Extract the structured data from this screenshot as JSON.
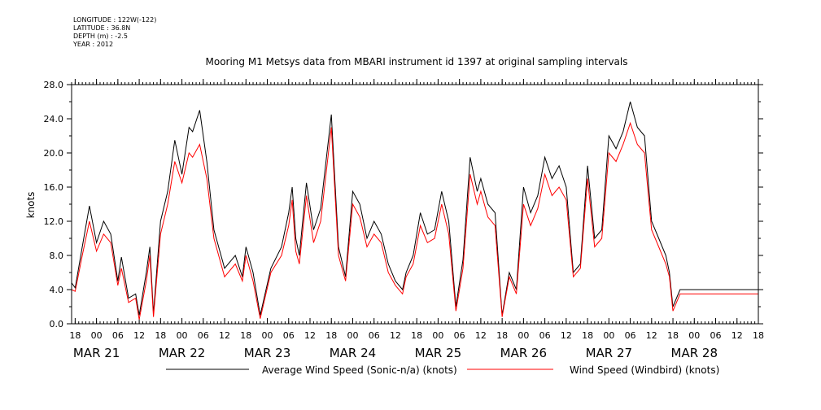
{
  "header": {
    "longitude": "LONGITUDE : 122W(-122)",
    "latitude": "LATITUDE : 36.8N",
    "depth": "DEPTH (m) : -2.5",
    "year": "YEAR : 2012"
  },
  "chart_data": {
    "type": "line",
    "title": "Mooring M1 Metsys data from MBARI instrument id 1397 at original sampling intervals",
    "ylabel": "knots",
    "xlabel": "",
    "ylim": [
      0,
      28
    ],
    "yticks": [
      0,
      4,
      8,
      12,
      16,
      20,
      24,
      28
    ],
    "ytick_labels": [
      "0.0",
      "4.0",
      "8.0",
      "12.0",
      "16.0",
      "20.0",
      "24.0",
      "28.0"
    ],
    "xlim": [
      "2012-03-20T17:00",
      "2012-03-28T18:00"
    ],
    "xtick_hour_labels": [
      {
        "t": "2012-03-20T18:00",
        "label": "18"
      },
      {
        "t": "2012-03-21T00:00",
        "label": "00"
      },
      {
        "t": "2012-03-21T06:00",
        "label": "06"
      },
      {
        "t": "2012-03-21T12:00",
        "label": "12"
      },
      {
        "t": "2012-03-21T18:00",
        "label": "18"
      },
      {
        "t": "2012-03-22T00:00",
        "label": "00"
      },
      {
        "t": "2012-03-22T06:00",
        "label": "06"
      },
      {
        "t": "2012-03-22T12:00",
        "label": "12"
      },
      {
        "t": "2012-03-22T18:00",
        "label": "18"
      },
      {
        "t": "2012-03-23T00:00",
        "label": "00"
      },
      {
        "t": "2012-03-23T06:00",
        "label": "06"
      },
      {
        "t": "2012-03-23T12:00",
        "label": "12"
      },
      {
        "t": "2012-03-23T18:00",
        "label": "18"
      },
      {
        "t": "2012-03-24T00:00",
        "label": "00"
      },
      {
        "t": "2012-03-24T06:00",
        "label": "06"
      },
      {
        "t": "2012-03-24T12:00",
        "label": "12"
      },
      {
        "t": "2012-03-24T18:00",
        "label": "18"
      },
      {
        "t": "2012-03-25T00:00",
        "label": "00"
      },
      {
        "t": "2012-03-25T06:00",
        "label": "06"
      },
      {
        "t": "2012-03-25T12:00",
        "label": "12"
      },
      {
        "t": "2012-03-25T18:00",
        "label": "18"
      },
      {
        "t": "2012-03-26T00:00",
        "label": "00"
      },
      {
        "t": "2012-03-26T06:00",
        "label": "06"
      },
      {
        "t": "2012-03-26T12:00",
        "label": "12"
      },
      {
        "t": "2012-03-26T18:00",
        "label": "18"
      },
      {
        "t": "2012-03-27T00:00",
        "label": "00"
      },
      {
        "t": "2012-03-27T06:00",
        "label": "06"
      },
      {
        "t": "2012-03-27T12:00",
        "label": "12"
      },
      {
        "t": "2012-03-27T18:00",
        "label": "18"
      },
      {
        "t": "2012-03-28T00:00",
        "label": "00"
      },
      {
        "t": "2012-03-28T06:00",
        "label": "06"
      },
      {
        "t": "2012-03-28T12:00",
        "label": "12"
      },
      {
        "t": "2012-03-28T18:00",
        "label": "18"
      }
    ],
    "xtick_day_labels": [
      {
        "t": "2012-03-21T00:00",
        "label": "MAR 21"
      },
      {
        "t": "2012-03-22T00:00",
        "label": "MAR 22"
      },
      {
        "t": "2012-03-23T00:00",
        "label": "MAR 23"
      },
      {
        "t": "2012-03-24T00:00",
        "label": "MAR 24"
      },
      {
        "t": "2012-03-25T00:00",
        "label": "MAR 25"
      },
      {
        "t": "2012-03-26T00:00",
        "label": "MAR 26"
      },
      {
        "t": "2012-03-27T00:00",
        "label": "MAR 27"
      },
      {
        "t": "2012-03-28T00:00",
        "label": "MAR 28"
      }
    ],
    "legend_placement": "bottom",
    "series": [
      {
        "name": "Average Wind Speed (Sonic-n/a) (knots)",
        "color": "#000000",
        "x": [
          "2012-03-20T17:00",
          "2012-03-20T18:00",
          "2012-03-20T20:00",
          "2012-03-20T22:00",
          "2012-03-21T00:00",
          "2012-03-21T02:00",
          "2012-03-21T04:00",
          "2012-03-21T06:00",
          "2012-03-21T07:00",
          "2012-03-21T09:00",
          "2012-03-21T11:00",
          "2012-03-21T12:00",
          "2012-03-21T14:00",
          "2012-03-21T15:00",
          "2012-03-21T16:00",
          "2012-03-21T18:00",
          "2012-03-21T20:00",
          "2012-03-21T22:00",
          "2012-03-22T00:00",
          "2012-03-22T02:00",
          "2012-03-22T03:00",
          "2012-03-22T05:00",
          "2012-03-22T07:00",
          "2012-03-22T09:00",
          "2012-03-22T12:00",
          "2012-03-22T15:00",
          "2012-03-22T17:00",
          "2012-03-22T18:00",
          "2012-03-22T20:00",
          "2012-03-22T22:00",
          "2012-03-23T01:00",
          "2012-03-23T04:00",
          "2012-03-23T06:00",
          "2012-03-23T07:00",
          "2012-03-23T08:00",
          "2012-03-23T09:00",
          "2012-03-23T11:00",
          "2012-03-23T13:00",
          "2012-03-23T15:00",
          "2012-03-23T18:00",
          "2012-03-23T20:00",
          "2012-03-23T22:00",
          "2012-03-24T00:00",
          "2012-03-24T02:00",
          "2012-03-24T04:00",
          "2012-03-24T06:00",
          "2012-03-24T08:00",
          "2012-03-24T10:00",
          "2012-03-24T12:00",
          "2012-03-24T14:00",
          "2012-03-24T15:00",
          "2012-03-24T17:00",
          "2012-03-24T19:00",
          "2012-03-24T21:00",
          "2012-03-24T23:00",
          "2012-03-25T01:00",
          "2012-03-25T03:00",
          "2012-03-25T05:00",
          "2012-03-25T07:00",
          "2012-03-25T09:00",
          "2012-03-25T11:00",
          "2012-03-25T12:00",
          "2012-03-25T14:00",
          "2012-03-25T16:00",
          "2012-03-25T18:00",
          "2012-03-25T20:00",
          "2012-03-25T22:00",
          "2012-03-26T00:00",
          "2012-03-26T02:00",
          "2012-03-26T04:00",
          "2012-03-26T06:00",
          "2012-03-26T08:00",
          "2012-03-26T10:00",
          "2012-03-26T12:00",
          "2012-03-26T14:00",
          "2012-03-26T16:00",
          "2012-03-26T18:00",
          "2012-03-26T20:00",
          "2012-03-26T22:00",
          "2012-03-27T00:00",
          "2012-03-27T02:00",
          "2012-03-27T04:00",
          "2012-03-27T06:00",
          "2012-03-27T08:00",
          "2012-03-27T10:00",
          "2012-03-27T11:00",
          "2012-03-27T12:00",
          "2012-03-27T14:00",
          "2012-03-27T16:00",
          "2012-03-27T17:00",
          "2012-03-27T18:00",
          "2012-03-27T20:00",
          "2012-03-27T22:00",
          "2012-03-28T00:00",
          "2012-03-28T02:00",
          "2012-03-28T04:00",
          "2012-03-28T06:00",
          "2012-03-28T08:00",
          "2012-03-28T10:00",
          "2012-03-28T12:00",
          "2012-03-28T14:00",
          "2012-03-28T16:00",
          "2012-03-28T17:00",
          "2012-03-28T18:00"
        ],
        "y": [
          4.8,
          4.2,
          9.0,
          13.8,
          9.5,
          12.0,
          10.5,
          5.0,
          7.8,
          3.0,
          3.5,
          1.0,
          6.0,
          9.0,
          1.2,
          12.0,
          15.5,
          21.5,
          17.5,
          23.0,
          22.5,
          25.0,
          19.0,
          11.0,
          6.5,
          8.0,
          5.5,
          9.0,
          6.0,
          1.0,
          6.5,
          9.0,
          13.0,
          16.0,
          10.0,
          8.0,
          16.5,
          11.0,
          13.5,
          24.5,
          9.0,
          5.5,
          15.5,
          14.0,
          10.0,
          12.0,
          10.5,
          7.0,
          5.0,
          4.0,
          6.0,
          8.0,
          13.0,
          10.5,
          11.0,
          15.5,
          12.0,
          2.0,
          7.5,
          19.5,
          15.5,
          17.0,
          14.0,
          13.0,
          1.0,
          6.0,
          4.0,
          16.0,
          13.0,
          15.0,
          19.5,
          17.0,
          18.5,
          16.0,
          6.0,
          7.0,
          18.5,
          10.0,
          11.0,
          22.0,
          20.5,
          22.5,
          26.0,
          23.0,
          22.0,
          17.0,
          12.0,
          10.0,
          8.0,
          6.0,
          2.0,
          4.0,
          4.0,
          4.0,
          4.0,
          4.0,
          4.0,
          4.0,
          4.0,
          4.0,
          4.0,
          4.0,
          4.0,
          4.0
        ]
      },
      {
        "name": "Wind Speed (Windbird) (knots)",
        "color": "#ff0000",
        "x": [
          "2012-03-20T17:00",
          "2012-03-20T18:00",
          "2012-03-20T20:00",
          "2012-03-20T22:00",
          "2012-03-21T00:00",
          "2012-03-21T02:00",
          "2012-03-21T04:00",
          "2012-03-21T06:00",
          "2012-03-21T07:00",
          "2012-03-21T09:00",
          "2012-03-21T11:00",
          "2012-03-21T12:00",
          "2012-03-21T14:00",
          "2012-03-21T15:00",
          "2012-03-21T16:00",
          "2012-03-21T18:00",
          "2012-03-21T20:00",
          "2012-03-21T22:00",
          "2012-03-22T00:00",
          "2012-03-22T02:00",
          "2012-03-22T03:00",
          "2012-03-22T05:00",
          "2012-03-22T07:00",
          "2012-03-22T09:00",
          "2012-03-22T12:00",
          "2012-03-22T15:00",
          "2012-03-22T17:00",
          "2012-03-22T18:00",
          "2012-03-22T20:00",
          "2012-03-22T22:00",
          "2012-03-23T01:00",
          "2012-03-23T04:00",
          "2012-03-23T06:00",
          "2012-03-23T07:00",
          "2012-03-23T08:00",
          "2012-03-23T09:00",
          "2012-03-23T11:00",
          "2012-03-23T13:00",
          "2012-03-23T15:00",
          "2012-03-23T18:00",
          "2012-03-23T20:00",
          "2012-03-23T22:00",
          "2012-03-24T00:00",
          "2012-03-24T02:00",
          "2012-03-24T04:00",
          "2012-03-24T06:00",
          "2012-03-24T08:00",
          "2012-03-24T10:00",
          "2012-03-24T12:00",
          "2012-03-24T14:00",
          "2012-03-24T15:00",
          "2012-03-24T17:00",
          "2012-03-24T19:00",
          "2012-03-24T21:00",
          "2012-03-24T23:00",
          "2012-03-25T01:00",
          "2012-03-25T03:00",
          "2012-03-25T05:00",
          "2012-03-25T07:00",
          "2012-03-25T09:00",
          "2012-03-25T11:00",
          "2012-03-25T12:00",
          "2012-03-25T14:00",
          "2012-03-25T16:00",
          "2012-03-25T18:00",
          "2012-03-25T20:00",
          "2012-03-25T22:00",
          "2012-03-26T00:00",
          "2012-03-26T02:00",
          "2012-03-26T04:00",
          "2012-03-26T06:00",
          "2012-03-26T08:00",
          "2012-03-26T10:00",
          "2012-03-26T12:00",
          "2012-03-26T14:00",
          "2012-03-26T16:00",
          "2012-03-26T18:00",
          "2012-03-26T20:00",
          "2012-03-26T22:00",
          "2012-03-27T00:00",
          "2012-03-27T02:00",
          "2012-03-27T04:00",
          "2012-03-27T06:00",
          "2012-03-27T08:00",
          "2012-03-27T10:00",
          "2012-03-27T11:00",
          "2012-03-27T12:00",
          "2012-03-27T14:00",
          "2012-03-27T16:00",
          "2012-03-27T17:00",
          "2012-03-27T18:00",
          "2012-03-27T20:00",
          "2012-03-27T22:00",
          "2012-03-28T00:00",
          "2012-03-28T02:00",
          "2012-03-28T04:00",
          "2012-03-28T06:00",
          "2012-03-28T08:00",
          "2012-03-28T10:00",
          "2012-03-28T12:00",
          "2012-03-28T14:00",
          "2012-03-28T16:00",
          "2012-03-28T17:00",
          "2012-03-28T18:00"
        ],
        "y": [
          4.0,
          3.8,
          8.0,
          12.0,
          8.5,
          10.5,
          9.5,
          4.5,
          6.5,
          2.5,
          3.0,
          0.5,
          5.0,
          8.0,
          0.8,
          10.5,
          14.0,
          19.0,
          16.5,
          20.0,
          19.5,
          21.0,
          17.0,
          10.0,
          5.5,
          7.0,
          5.0,
          8.0,
          5.0,
          0.6,
          6.0,
          8.0,
          11.5,
          14.5,
          8.5,
          7.0,
          15.0,
          9.5,
          12.0,
          23.0,
          8.0,
          5.0,
          14.0,
          12.5,
          9.0,
          10.5,
          9.5,
          6.0,
          4.5,
          3.5,
          5.5,
          7.0,
          11.5,
          9.5,
          10.0,
          14.0,
          10.5,
          1.5,
          6.5,
          17.5,
          14.0,
          15.5,
          12.5,
          11.5,
          0.8,
          5.5,
          3.5,
          14.0,
          11.5,
          13.5,
          17.5,
          15.0,
          16.0,
          14.5,
          5.5,
          6.5,
          17.0,
          9.0,
          10.0,
          20.0,
          19.0,
          21.0,
          23.5,
          21.0,
          20.0,
          15.5,
          11.0,
          9.0,
          7.0,
          5.5,
          1.5,
          3.5,
          3.5,
          3.5,
          3.5,
          3.5,
          3.5,
          3.5,
          3.5,
          3.5,
          3.5,
          3.5,
          3.5,
          3.5
        ]
      }
    ]
  }
}
